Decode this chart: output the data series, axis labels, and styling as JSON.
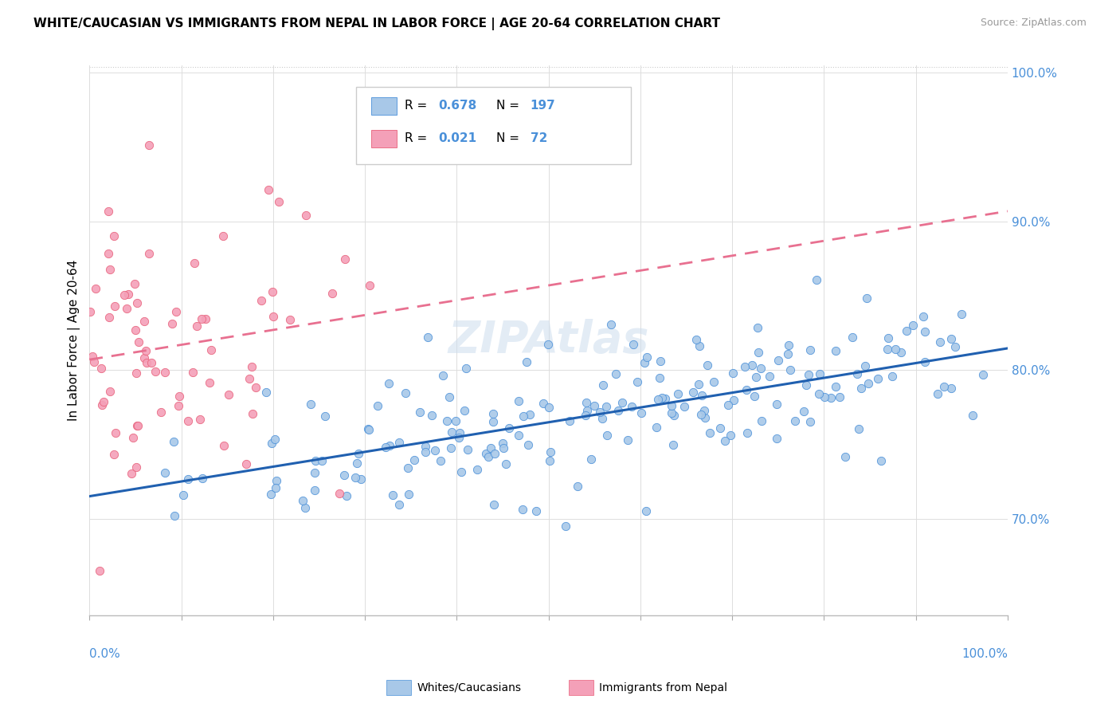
{
  "title": "WHITE/CAUCASIAN VS IMMIGRANTS FROM NEPAL IN LABOR FORCE | AGE 20-64 CORRELATION CHART",
  "source": "Source: ZipAtlas.com",
  "ylabel": "In Labor Force | Age 20-64",
  "legend1_color": "#a8c8e8",
  "legend2_color": "#f4a0b8",
  "blue_color": "#4a90d9",
  "pink_color": "#e8607a",
  "blue_line_color": "#2060b0",
  "pink_line_color": "#e87090",
  "blue_R": 0.678,
  "blue_N": 197,
  "pink_R": 0.021,
  "pink_N": 72,
  "watermark": "ZIPAtlas",
  "ylim_low": 0.635,
  "ylim_high": 1.005,
  "yticks": [
    0.7,
    0.8,
    0.9,
    1.0
  ],
  "ytick_labels": [
    "70.0%",
    "80.0%",
    "90.0%",
    "100.0%"
  ]
}
